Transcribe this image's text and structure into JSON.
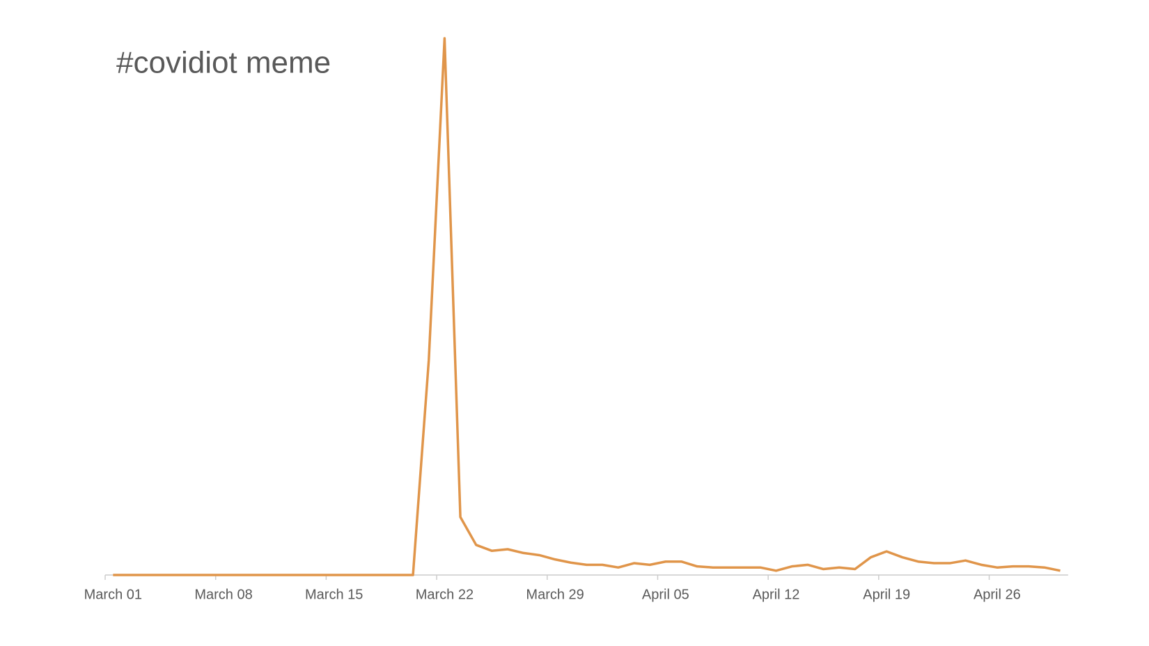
{
  "chart_data": {
    "type": "line",
    "title": "#covidiot meme",
    "categories": [
      "March 01",
      null,
      null,
      null,
      null,
      null,
      null,
      "March 08",
      null,
      null,
      null,
      null,
      null,
      null,
      "March 15",
      null,
      null,
      null,
      null,
      null,
      null,
      "March 22",
      null,
      null,
      null,
      null,
      null,
      null,
      "March 29",
      null,
      null,
      null,
      null,
      null,
      null,
      "April 05",
      null,
      null,
      null,
      null,
      null,
      null,
      "April 12",
      null,
      null,
      null,
      null,
      null,
      null,
      "April 19",
      null,
      null,
      null,
      null,
      null,
      null,
      "April 26",
      null,
      null,
      null,
      null
    ],
    "values": [
      0,
      0,
      0,
      0,
      0,
      0,
      0,
      0,
      0,
      0,
      0,
      0,
      0,
      0,
      0,
      0,
      0,
      0,
      0,
      0,
      40,
      100,
      10.8,
      5.6,
      4.5,
      4.8,
      4.1,
      3.7,
      2.9,
      2.3,
      1.9,
      1.9,
      1.4,
      2.2,
      1.9,
      2.5,
      2.5,
      1.6,
      1.4,
      1.4,
      1.4,
      1.4,
      0.8,
      1.6,
      1.9,
      1.1,
      1.4,
      1.1,
      3.3,
      4.4,
      3.3,
      2.5,
      2.2,
      2.2,
      2.7,
      1.9,
      1.4,
      1.6,
      1.6,
      1.4,
      0.8
    ],
    "color": "#e0954a",
    "ylim": [
      0,
      100
    ]
  }
}
